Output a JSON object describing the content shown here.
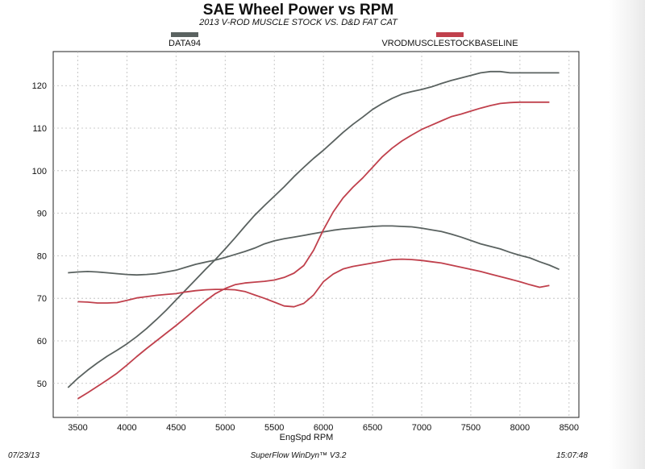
{
  "chart_data": {
    "type": "line",
    "title": "SAE Wheel Power vs RPM",
    "subtitle": "2013 V-ROD MUSCLE STOCK VS. D&D FAT CAT",
    "xlabel": "EngSpd RPM",
    "ylabel": "",
    "xlim": [
      3250,
      8600
    ],
    "ylim": [
      42,
      128
    ],
    "xticks": [
      3500,
      4000,
      4500,
      5000,
      5500,
      6000,
      6500,
      7000,
      7500,
      8000,
      8500
    ],
    "yticks": [
      50,
      60,
      70,
      80,
      90,
      100,
      110,
      120
    ],
    "grid": "dashed",
    "legend_position": "top",
    "series": [
      {
        "name": "DATA94",
        "color": "#5a6260",
        "sub": [
          {
            "x": [
              3400,
              3500,
              3600,
              3700,
              3800,
              3900,
              4000,
              4100,
              4200,
              4300,
              4400,
              4500,
              4600,
              4700,
              4800,
              4900,
              5000,
              5100,
              5200,
              5300,
              5400,
              5500,
              5600,
              5700,
              5800,
              5900,
              6000,
              6100,
              6200,
              6300,
              6400,
              6500,
              6600,
              6700,
              6800,
              6900,
              7000,
              7100,
              7200,
              7300,
              7400,
              7500,
              7600,
              7700,
              7800,
              7900,
              8000,
              8100,
              8200,
              8300,
              8400
            ],
            "y": [
              76.0,
              76.2,
              76.3,
              76.2,
              76.0,
              75.8,
              75.6,
              75.5,
              75.6,
              75.8,
              76.2,
              76.6,
              77.3,
              78.0,
              78.5,
              79.0,
              79.6,
              80.3,
              81.0,
              81.8,
              82.8,
              83.5,
              84.0,
              84.4,
              84.8,
              85.2,
              85.6,
              86.0,
              86.3,
              86.5,
              86.7,
              86.9,
              87.0,
              87.0,
              86.9,
              86.8,
              86.5,
              86.1,
              85.7,
              85.1,
              84.4,
              83.6,
              82.8,
              82.2,
              81.6,
              80.8,
              80.1,
              79.5,
              78.6,
              77.8,
              76.8
            ]
          },
          {
            "x": [
              3400,
              3500,
              3600,
              3700,
              3800,
              3900,
              4000,
              4100,
              4200,
              4300,
              4400,
              4500,
              4600,
              4700,
              4800,
              4900,
              5000,
              5100,
              5200,
              5300,
              5400,
              5500,
              5600,
              5700,
              5800,
              5900,
              6000,
              6100,
              6200,
              6300,
              6400,
              6500,
              6600,
              6700,
              6800,
              6900,
              7000,
              7100,
              7200,
              7300,
              7400,
              7500,
              7600,
              7700,
              7800,
              7900,
              8000,
              8100,
              8200,
              8300,
              8400
            ],
            "y": [
              49.0,
              51.2,
              53.1,
              54.8,
              56.4,
              57.8,
              59.3,
              61.0,
              62.9,
              65.0,
              67.2,
              69.6,
              72.0,
              74.4,
              76.8,
              79.1,
              81.6,
              84.2,
              86.9,
              89.5,
              91.8,
              94.0,
              96.2,
              98.6,
              100.8,
              102.9,
              104.8,
              106.9,
              109.0,
              110.9,
              112.6,
              114.4,
              115.8,
              117.0,
              118.0,
              118.6,
              119.1,
              119.7,
              120.5,
              121.2,
              121.8,
              122.4,
              123.0,
              123.3,
              123.3,
              123.0,
              123.0,
              123.0,
              123.0,
              123.0,
              123.0
            ]
          }
        ]
      },
      {
        "name": "VRODMUSCLESTOCKBASELINE",
        "color": "#c0404c",
        "sub": [
          {
            "x": [
              3500,
              3600,
              3700,
              3800,
              3900,
              4000,
              4100,
              4200,
              4300,
              4400,
              4500,
              4600,
              4700,
              4800,
              4900,
              5000,
              5100,
              5200,
              5300,
              5400,
              5500,
              5600,
              5700,
              5800,
              5900,
              6000,
              6100,
              6200,
              6300,
              6400,
              6500,
              6600,
              6700,
              6800,
              6900,
              7000,
              7100,
              7200,
              7300,
              7400,
              7500,
              7600,
              7700,
              7800,
              7900,
              8000,
              8100,
              8200,
              8300
            ],
            "y": [
              69.2,
              69.1,
              68.9,
              68.9,
              69.0,
              69.5,
              70.1,
              70.4,
              70.7,
              70.9,
              71.1,
              71.5,
              71.8,
              72.0,
              72.1,
              72.1,
              72.0,
              71.6,
              70.8,
              70.0,
              69.1,
              68.2,
              68.0,
              68.8,
              70.8,
              73.9,
              75.7,
              76.9,
              77.5,
              77.9,
              78.3,
              78.7,
              79.1,
              79.2,
              79.1,
              78.9,
              78.6,
              78.3,
              77.8,
              77.3,
              76.8,
              76.3,
              75.7,
              75.1,
              74.5,
              73.9,
              73.2,
              72.6,
              73.0
            ]
          },
          {
            "x": [
              3500,
              3600,
              3700,
              3800,
              3900,
              4000,
              4100,
              4200,
              4300,
              4400,
              4500,
              4600,
              4700,
              4800,
              4900,
              5000,
              5100,
              5200,
              5300,
              5400,
              5500,
              5600,
              5700,
              5800,
              5900,
              6000,
              6100,
              6200,
              6300,
              6400,
              6500,
              6600,
              6700,
              6800,
              6900,
              7000,
              7100,
              7200,
              7300,
              7400,
              7500,
              7600,
              7700,
              7800,
              7900,
              8000,
              8100,
              8200,
              8300
            ],
            "y": [
              46.4,
              47.8,
              49.3,
              50.8,
              52.4,
              54.3,
              56.3,
              58.2,
              60.0,
              61.8,
              63.6,
              65.5,
              67.5,
              69.4,
              71.1,
              72.3,
              73.2,
              73.6,
              73.8,
              74.0,
              74.3,
              74.9,
              75.9,
              77.7,
              81.3,
              86.1,
              90.3,
              93.6,
              96.1,
              98.3,
              100.8,
              103.3,
              105.3,
              107.0,
              108.4,
              109.7,
              110.7,
              111.7,
              112.7,
              113.3,
              114.0,
              114.7,
              115.3,
              115.8,
              116.0,
              116.1,
              116.1,
              116.1,
              116.1
            ]
          }
        ]
      }
    ]
  },
  "footer": {
    "date": "07/23/13",
    "app": "SuperFlow WinDyn™ V3.2",
    "time": "15:07:48"
  }
}
